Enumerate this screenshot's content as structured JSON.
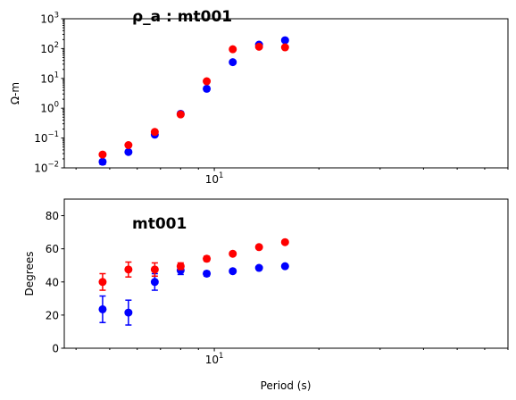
{
  "colors": {
    "series_blue": "#0000ff",
    "series_red": "#ff0000",
    "axes": "#000000",
    "background": "#ffffff"
  },
  "chart_data": [
    {
      "type": "scatter",
      "title": "ρ_a : mt001",
      "xlabel": "",
      "ylabel": "Ω-m",
      "xscale": "log",
      "yscale": "log",
      "xlim": [
        3.7,
        70
      ],
      "ylim": [
        0.01,
        1000
      ],
      "x_ticks": [
        {
          "value": 10,
          "base": "10",
          "exp": "1"
        }
      ],
      "y_ticks": [
        {
          "value": 0.01,
          "base": "10",
          "exp": "−2"
        },
        {
          "value": 0.1,
          "base": "10",
          "exp": "−1"
        },
        {
          "value": 1,
          "base": "10",
          "exp": "0"
        },
        {
          "value": 10,
          "base": "10",
          "exp": "1"
        },
        {
          "value": 100,
          "base": "10",
          "exp": "2"
        },
        {
          "value": 1000,
          "base": "10",
          "exp": "3"
        }
      ],
      "grid": false,
      "series": [
        {
          "color": "#0000ff",
          "x": [
            4.77,
            5.66,
            6.74,
            8.0,
            9.51,
            11.3,
            13.45,
            15.98
          ],
          "y": [
            0.016,
            0.034,
            0.13,
            0.65,
            4.5,
            35,
            135,
            190
          ],
          "yerr": [
            0.003,
            0.004,
            0.015,
            0.06,
            0.4,
            3,
            12,
            15
          ]
        },
        {
          "color": "#ff0000",
          "x": [
            4.77,
            5.66,
            6.74,
            8.0,
            9.51,
            11.3,
            13.45,
            15.98
          ],
          "y": [
            0.028,
            0.058,
            0.16,
            0.62,
            8.0,
            95,
            115,
            110
          ],
          "yerr": [
            0.003,
            0.006,
            0.015,
            0.05,
            0.6,
            8,
            10,
            10
          ]
        }
      ]
    },
    {
      "type": "scatter",
      "title": "mt001",
      "xlabel": "Period (s)",
      "ylabel": "Degrees",
      "xscale": "log",
      "yscale": "linear",
      "xlim": [
        3.7,
        70
      ],
      "ylim": [
        0,
        90
      ],
      "x_ticks": [
        {
          "value": 10,
          "base": "10",
          "exp": "1"
        }
      ],
      "y_ticks": [
        {
          "value": 0,
          "label": "0"
        },
        {
          "value": 20,
          "label": "20"
        },
        {
          "value": 40,
          "label": "40"
        },
        {
          "value": 60,
          "label": "60"
        },
        {
          "value": 80,
          "label": "80"
        }
      ],
      "grid": false,
      "series": [
        {
          "color": "#0000ff",
          "x": [
            4.77,
            5.66,
            6.74,
            8.0,
            9.51,
            11.3,
            13.45,
            15.98
          ],
          "y": [
            23.5,
            21.5,
            40,
            47,
            45,
            46.5,
            48.5,
            49.5
          ],
          "yerr": [
            8,
            7.5,
            5,
            2.5,
            1.5,
            1,
            1,
            1
          ]
        },
        {
          "color": "#ff0000",
          "x": [
            4.77,
            5.66,
            6.74,
            8.0,
            9.51,
            11.3,
            13.45,
            15.98
          ],
          "y": [
            40,
            47.5,
            47.5,
            49.5,
            54,
            57,
            61,
            64
          ],
          "yerr": [
            5,
            4.5,
            4,
            2,
            1.5,
            1,
            1,
            1
          ]
        }
      ]
    }
  ]
}
